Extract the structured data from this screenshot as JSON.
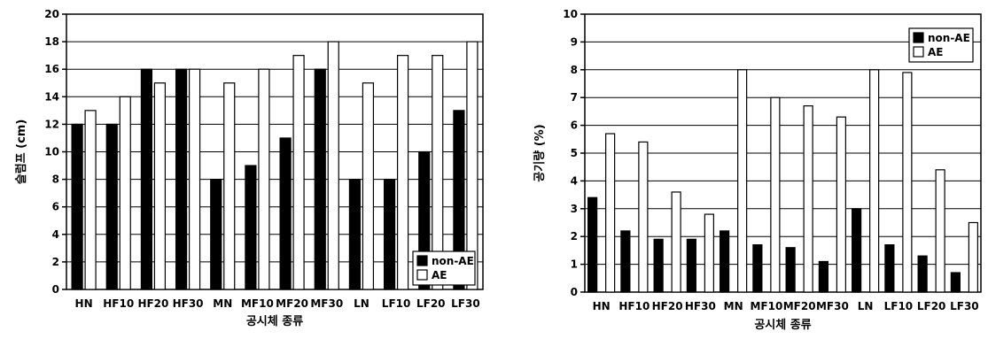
{
  "chart_data": [
    {
      "type": "bar",
      "title": "",
      "xlabel": "공시체 종류",
      "ylabel": "슬럼프 (cm)",
      "ylim": [
        0,
        20
      ],
      "yticks": [
        0,
        2,
        4,
        6,
        8,
        10,
        12,
        14,
        16,
        18,
        20
      ],
      "grid": true,
      "legend_position": "bottom-right",
      "categories": [
        "HN",
        "HF10",
        "HF20",
        "HF30",
        "MN",
        "MF10",
        "MF20",
        "MF30",
        "LN",
        "LF10",
        "LF20",
        "LF30"
      ],
      "series": [
        {
          "name": "non-AE",
          "color": "#000000",
          "values": [
            12,
            12,
            16,
            16,
            8,
            9,
            11,
            16,
            8,
            8,
            10,
            13
          ]
        },
        {
          "name": "AE",
          "color": "#ffffff",
          "values": [
            13,
            14,
            15,
            16,
            15,
            16,
            17,
            18,
            15,
            17,
            17,
            18
          ]
        }
      ]
    },
    {
      "type": "bar",
      "title": "",
      "xlabel": "공시체 종류",
      "ylabel": "공기량 (%)",
      "ylim": [
        0,
        10
      ],
      "yticks": [
        0,
        1,
        2,
        3,
        4,
        5,
        6,
        7,
        8,
        9,
        10
      ],
      "grid": true,
      "legend_position": "top-right",
      "categories": [
        "HN",
        "HF10",
        "HF20",
        "HF30",
        "MN",
        "MF10",
        "MF20",
        "MF30",
        "LN",
        "LF10",
        "LF20",
        "LF30"
      ],
      "series": [
        {
          "name": "non-AE",
          "color": "#000000",
          "values": [
            3.4,
            2.2,
            1.9,
            1.9,
            2.2,
            1.7,
            1.6,
            1.1,
            3.0,
            1.7,
            1.3,
            0.7
          ]
        },
        {
          "name": "AE",
          "color": "#ffffff",
          "values": [
            5.7,
            5.4,
            3.6,
            2.8,
            8.0,
            7.0,
            6.7,
            6.3,
            8.0,
            7.9,
            4.4,
            2.5
          ]
        }
      ]
    }
  ]
}
